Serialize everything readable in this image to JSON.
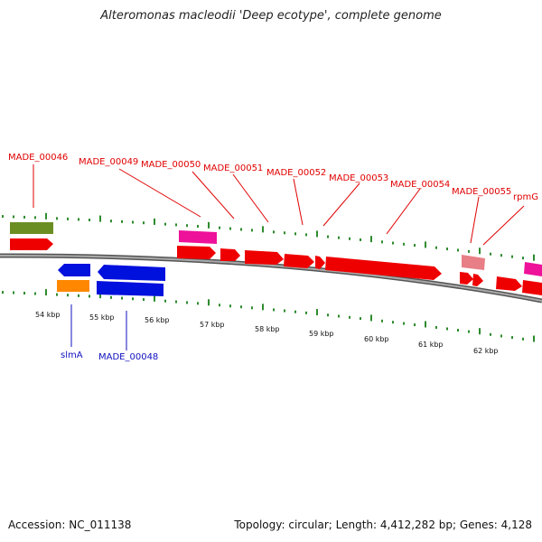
{
  "title": "Alteromonas macleodii 'Deep ecotype', complete genome",
  "footer": {
    "accession": "Accession: NC_011138",
    "summary": "Topology: circular; Length: 4,412,282 bp; Genes: 4,128"
  },
  "colors": {
    "cds_forward": "#ee0000",
    "cds_reverse": "#0010dd",
    "gene_green": "#6b8e23",
    "rna_magenta": "#ee1199",
    "rna_pink": "#e87f86",
    "orange": "#ff8800",
    "backbone": "#777777",
    "tick_green": "#2e8b2e",
    "label_forward": "#e00000",
    "label_reverse": "#1010c0"
  },
  "scale_labels": [
    "54 kbp",
    "55 kbp",
    "56 kbp",
    "57 kbp",
    "58 kbp",
    "59 kbp",
    "60 kbp",
    "61 kbp",
    "62 kbp"
  ],
  "forward_labels": [
    "MADE_00046",
    "MADE_00049",
    "MADE_00050",
    "MADE_00051",
    "MADE_00052",
    "MADE_00053",
    "MADE_00054",
    "MADE_00055",
    "rpmG"
  ],
  "reverse_labels": [
    "slmA",
    "MADE_00048"
  ]
}
